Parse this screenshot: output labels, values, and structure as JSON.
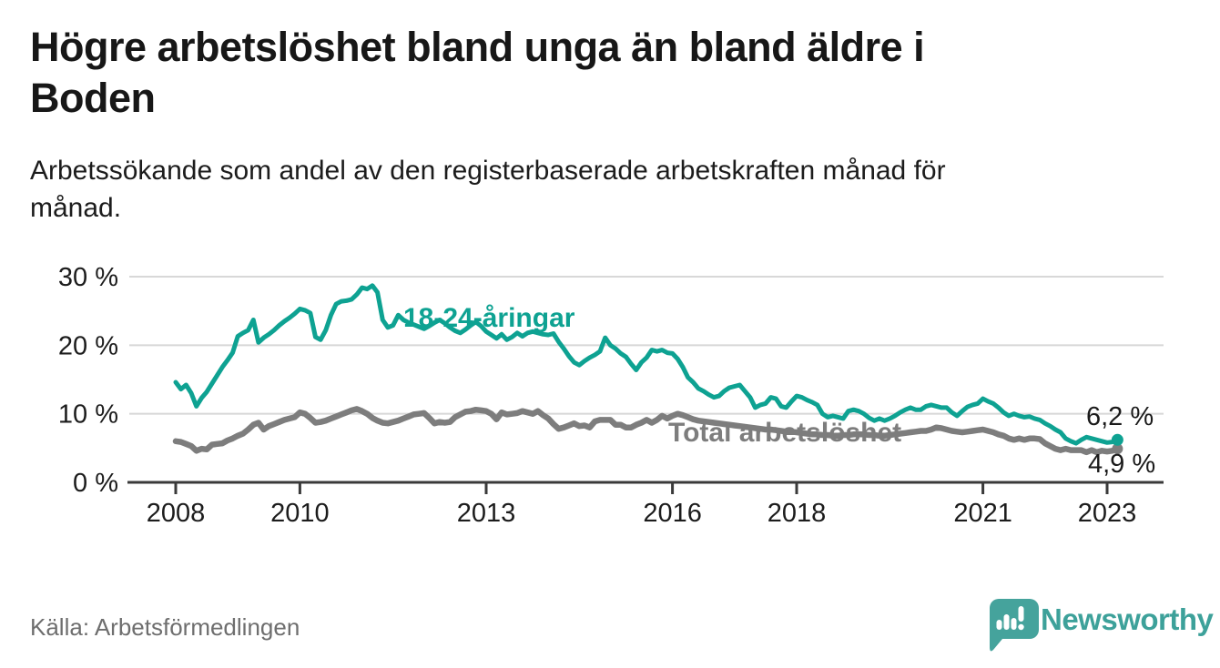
{
  "header": {
    "title_lines": [
      "Högre arbetslöshet bland unga än bland äldre i",
      "Boden"
    ],
    "subtitle_lines": [
      "Arbetssökande som andel av den registerbaserade arbetskraften månad för",
      "månad."
    ]
  },
  "footer": {
    "source": "Källa: Arbetsförmedlingen",
    "brand": "Newsworthy"
  },
  "colors": {
    "young_line": "#0ea292",
    "total_line": "#7d7d7d",
    "grid": "#d8d8d8",
    "axis": "#3a3a3a",
    "tick_text": "#1c1c1c",
    "end_label_text": "#1a1a1a",
    "brand_teal": "#45a39c"
  },
  "chart_data": {
    "type": "line",
    "title": "Högre arbetslöshet bland unga än bland äldre i Boden",
    "subtitle": "Arbetssökande som andel av den registerbaserade arbetskraften månad för månad.",
    "source": "Källa: Arbetsförmedlingen",
    "xlabel": "",
    "ylabel": "",
    "ylim": [
      0,
      31
    ],
    "grid": "horizontal",
    "legend": "inline-labels",
    "x_start_year": 2008,
    "x_end": "2023-03",
    "frequency": "monthly",
    "x_ticks": [
      {
        "year": 2008,
        "label": "2008"
      },
      {
        "year": 2010,
        "label": "2010"
      },
      {
        "year": 2013,
        "label": "2013"
      },
      {
        "year": 2016,
        "label": "2016"
      },
      {
        "year": 2018,
        "label": "2018"
      },
      {
        "year": 2021,
        "label": "2021"
      },
      {
        "year": 2023,
        "label": "2023"
      }
    ],
    "y_ticks": [
      {
        "value": 0,
        "label": "0 %"
      },
      {
        "value": 10,
        "label": "10 %"
      },
      {
        "value": 20,
        "label": "20 %"
      },
      {
        "value": 30,
        "label": "30 %"
      }
    ],
    "series": [
      {
        "name": "Total arbetslöshet",
        "color": "#7d7d7d",
        "end_label": "4,9 %",
        "end_value": 4.9,
        "values": [
          6.0,
          5.9,
          5.6,
          5.3,
          4.6,
          4.9,
          4.8,
          5.5,
          5.6,
          5.7,
          6.1,
          6.4,
          6.8,
          7.1,
          7.7,
          8.4,
          8.7,
          7.7,
          8.2,
          8.5,
          8.8,
          9.1,
          9.3,
          9.5,
          10.2,
          10.0,
          9.4,
          8.7,
          8.8,
          9.0,
          9.3,
          9.6,
          9.9,
          10.2,
          10.5,
          10.7,
          10.4,
          10.0,
          9.4,
          9.0,
          8.7,
          8.6,
          8.8,
          9.0,
          9.3,
          9.6,
          9.9,
          10.0,
          10.1,
          9.4,
          8.6,
          8.8,
          8.7,
          8.8,
          9.5,
          9.9,
          10.3,
          10.4,
          10.6,
          10.5,
          10.4,
          10.0,
          9.2,
          10.2,
          9.9,
          10.0,
          10.1,
          10.4,
          10.2,
          10.0,
          10.4,
          9.8,
          9.3,
          8.5,
          7.8,
          8.0,
          8.3,
          8.6,
          8.2,
          8.3,
          8.0,
          8.9,
          9.1,
          9.1,
          9.1,
          8.4,
          8.4,
          8.0,
          8.0,
          8.4,
          8.7,
          9.1,
          8.7,
          9.1,
          9.7,
          9.3,
          9.7,
          10.0,
          9.8,
          9.5,
          9.2,
          9.0,
          8.9,
          8.8,
          8.7,
          8.6,
          8.5,
          8.4,
          8.3,
          8.2,
          8.1,
          8.0,
          7.9,
          7.8,
          7.7,
          7.7,
          7.6,
          7.5,
          7.4,
          7.4,
          7.3,
          7.2,
          7.1,
          7.0,
          7.0,
          6.9,
          6.9,
          6.8,
          6.8,
          6.9,
          6.9,
          7.0,
          7.0,
          7.0,
          6.9,
          6.9,
          6.8,
          6.8,
          6.9,
          7.0,
          7.1,
          7.2,
          7.3,
          7.4,
          7.5,
          7.5,
          7.7,
          8.0,
          7.9,
          7.7,
          7.5,
          7.4,
          7.3,
          7.4,
          7.5,
          7.6,
          7.7,
          7.5,
          7.3,
          7.0,
          6.8,
          6.4,
          6.2,
          6.4,
          6.2,
          6.4,
          6.4,
          6.3,
          5.7,
          5.3,
          4.9,
          4.7,
          4.9,
          4.7,
          4.7,
          4.7,
          4.4,
          4.7,
          4.4,
          4.6,
          4.5,
          4.6,
          4.9
        ]
      },
      {
        "name": "18-24-åringar",
        "color": "#0ea292",
        "end_label": "6,2 %",
        "end_value": 6.2,
        "values": [
          14.6,
          13.6,
          14.2,
          13.0,
          11.1,
          12.3,
          13.2,
          14.4,
          15.6,
          16.8,
          17.8,
          18.9,
          21.3,
          21.8,
          22.2,
          23.7,
          20.4,
          21.1,
          21.6,
          22.2,
          22.9,
          23.5,
          24.0,
          24.6,
          25.3,
          25.1,
          24.7,
          21.2,
          20.8,
          22.2,
          24.4,
          26.0,
          26.4,
          26.5,
          26.7,
          27.4,
          28.4,
          28.2,
          28.7,
          27.7,
          23.7,
          22.6,
          22.9,
          24.4,
          23.7,
          23.3,
          23.0,
          22.7,
          22.4,
          22.8,
          23.3,
          23.7,
          23.2,
          22.6,
          22.1,
          21.8,
          22.3,
          22.9,
          23.4,
          22.8,
          22.0,
          21.5,
          21.0,
          21.6,
          20.8,
          21.2,
          21.8,
          21.3,
          21.8,
          22.0,
          21.8,
          21.6,
          21.5,
          21.7,
          20.5,
          19.5,
          18.4,
          17.5,
          17.1,
          17.7,
          18.2,
          18.6,
          19.1,
          21.1,
          20.0,
          19.5,
          18.8,
          18.3,
          17.3,
          16.4,
          17.5,
          18.2,
          19.3,
          19.1,
          19.3,
          18.9,
          18.8,
          18.0,
          16.8,
          15.3,
          14.6,
          13.7,
          13.3,
          12.8,
          12.4,
          12.6,
          13.3,
          13.8,
          14.0,
          14.2,
          13.3,
          12.4,
          10.9,
          11.3,
          11.5,
          12.4,
          12.2,
          11.1,
          10.9,
          11.8,
          12.6,
          12.4,
          12.0,
          11.7,
          11.3,
          10.0,
          9.5,
          9.7,
          9.5,
          9.3,
          10.4,
          10.6,
          10.4,
          10.0,
          9.4,
          9.0,
          9.3,
          9.0,
          9.3,
          9.7,
          10.2,
          10.6,
          10.9,
          10.6,
          10.6,
          11.1,
          11.3,
          11.1,
          10.9,
          10.9,
          10.2,
          9.7,
          10.4,
          11.0,
          11.3,
          11.5,
          12.2,
          11.8,
          11.5,
          10.9,
          10.2,
          9.7,
          10.0,
          9.7,
          9.5,
          9.6,
          9.3,
          9.1,
          8.6,
          8.2,
          7.7,
          7.3,
          6.4,
          6.0,
          5.7,
          6.2,
          6.6,
          6.4,
          6.2,
          6.0,
          5.8,
          5.9,
          6.2
        ]
      }
    ]
  }
}
